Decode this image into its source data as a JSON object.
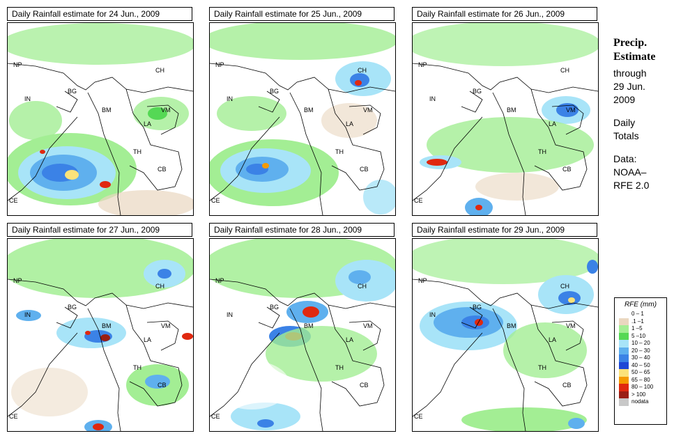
{
  "panels": [
    {
      "title": "Daily Rainfall estimate for  24 Jun., 2009"
    },
    {
      "title": "Daily Rainfall estimate for  25 Jun., 2009"
    },
    {
      "title": "Daily Rainfall estimate for  26 Jun., 2009"
    },
    {
      "title": "Daily Rainfall estimate for  27 Jun., 2009"
    },
    {
      "title": "Daily Rainfall estimate for  28 Jun., 2009"
    },
    {
      "title": "Daily Rainfall estimate for  29 Jun., 2009"
    }
  ],
  "country_labels": {
    "np": "NP",
    "in": "IN",
    "bg": "BG",
    "bm": "BM",
    "ch": "CH",
    "vm": "VM",
    "la": "LA",
    "th": "TH",
    "cb": "CB",
    "ce": "CE"
  },
  "side": {
    "title_line1": "Precip.",
    "title_line2": "Estimate",
    "through": "through",
    "date_line1": "29 Jun.",
    "date_line2": "2009",
    "daily": "Daily",
    "totals": "Totals",
    "data_label": "Data:",
    "source_line1": "NOAA–",
    "source_line2": "RFE 2.0"
  },
  "legend": {
    "title": "RFE (mm)",
    "entries": [
      {
        "label": "0 – 1",
        "color": "#ffffff"
      },
      {
        "label": ".1 –1",
        "color": "#ead7c0"
      },
      {
        "label": "1 –5",
        "color": "#a3ee94"
      },
      {
        "label": "5 –10",
        "color": "#55d855"
      },
      {
        "label": "10 – 20",
        "color": "#a8e4f8"
      },
      {
        "label": "20 – 30",
        "color": "#5fb0ee"
      },
      {
        "label": "30 – 40",
        "color": "#3b82e6"
      },
      {
        "label": "40 – 50",
        "color": "#1f48d6"
      },
      {
        "label": "50 – 65",
        "color": "#fbe27a"
      },
      {
        "label": "65 – 80",
        "color": "#f59a00"
      },
      {
        "label": "80 – 100",
        "color": "#e0280f"
      },
      {
        "label": "> 100",
        "color": "#9a1e14"
      },
      {
        "label": "nodata",
        "color": "#c8c8c8"
      }
    ]
  }
}
